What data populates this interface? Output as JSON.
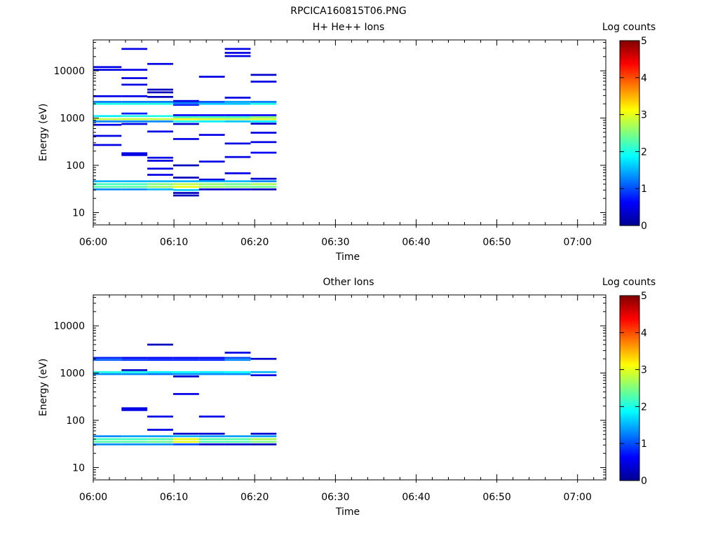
{
  "figure_title": "RPCICA160815T06.PNG",
  "chart_data": [
    {
      "type": "heatmap",
      "title": "H+ He++ Ions",
      "xlabel": "Time",
      "ylabel": "Energy (eV)",
      "x_ticks": [
        "06:00",
        "06:10",
        "06:20",
        "06:30",
        "06:40",
        "06:50",
        "07:00"
      ],
      "y_ticks": [
        "10",
        "100",
        "1000",
        "10000"
      ],
      "y_scale": "log",
      "ylim": [
        5.5,
        45000
      ],
      "xlim_minutes": [
        0,
        63.5
      ],
      "colorbar": {
        "label": "Log counts",
        "ticks": [
          "0",
          "1",
          "2",
          "3",
          "4",
          "5"
        ],
        "range": [
          0,
          5
        ]
      },
      "time_bins_minutes": [
        0,
        3.5,
        6.7,
        9.9,
        13.1,
        16.3,
        19.5,
        22.7
      ],
      "cells": [
        [
          0,
          12000,
          0.5
        ],
        [
          0,
          10500,
          0.5
        ],
        [
          0,
          2900,
          0.5
        ],
        [
          0,
          2200,
          1.2
        ],
        [
          0,
          2000,
          2.0
        ],
        [
          0,
          1100,
          1.8
        ],
        [
          0,
          950,
          2.8
        ],
        [
          0,
          850,
          1.3
        ],
        [
          0,
          720,
          0.5
        ],
        [
          0,
          420,
          0.5
        ],
        [
          0,
          270,
          0.5
        ],
        [
          0,
          46,
          1.5
        ],
        [
          0,
          40,
          2.2
        ],
        [
          0,
          35,
          2.3
        ],
        [
          0,
          31,
          1.3
        ],
        [
          1,
          29000,
          0.5
        ],
        [
          1,
          10500,
          0.5
        ],
        [
          1,
          7000,
          0.5
        ],
        [
          1,
          5100,
          0.5
        ],
        [
          1,
          2900,
          0.5
        ],
        [
          1,
          2200,
          1.2
        ],
        [
          1,
          2000,
          2.0
        ],
        [
          1,
          1250,
          0.8
        ],
        [
          1,
          1100,
          2.0
        ],
        [
          1,
          950,
          2.8
        ],
        [
          1,
          850,
          1.3
        ],
        [
          1,
          750,
          0.5
        ],
        [
          1,
          180,
          0.5
        ],
        [
          1,
          165,
          0.5
        ],
        [
          1,
          46,
          1.5
        ],
        [
          1,
          40,
          2.2
        ],
        [
          1,
          35,
          2.3
        ],
        [
          1,
          31,
          1.3
        ],
        [
          2,
          14000,
          0.5
        ],
        [
          2,
          4000,
          0.3
        ],
        [
          2,
          3500,
          0.3
        ],
        [
          2,
          2800,
          0.3
        ],
        [
          2,
          2200,
          1.2
        ],
        [
          2,
          2000,
          2.0
        ],
        [
          2,
          1100,
          2.0
        ],
        [
          2,
          950,
          2.8
        ],
        [
          2,
          850,
          1.3
        ],
        [
          2,
          520,
          0.5
        ],
        [
          2,
          145,
          0.5
        ],
        [
          2,
          125,
          0.5
        ],
        [
          2,
          85,
          0.5
        ],
        [
          2,
          63,
          0.5
        ],
        [
          2,
          46,
          1.5
        ],
        [
          2,
          40,
          2.5
        ],
        [
          2,
          35,
          2.6
        ],
        [
          2,
          31,
          1.5
        ],
        [
          3,
          2300,
          0.5
        ],
        [
          3,
          2100,
          1.2
        ],
        [
          3,
          1900,
          0.8
        ],
        [
          3,
          1150,
          0.6
        ],
        [
          3,
          1050,
          2.2
        ],
        [
          3,
          950,
          3.0
        ],
        [
          3,
          850,
          2.0
        ],
        [
          3,
          750,
          0.4
        ],
        [
          3,
          360,
          0.5
        ],
        [
          3,
          100,
          0.3
        ],
        [
          3,
          55,
          0.3
        ],
        [
          3,
          46,
          1.5
        ],
        [
          3,
          40,
          2.8
        ],
        [
          3,
          35,
          3.0
        ],
        [
          3,
          30,
          1.6
        ],
        [
          3,
          26,
          0.3
        ],
        [
          3,
          23,
          0.3
        ],
        [
          4,
          7500,
          0.5
        ],
        [
          4,
          2200,
          1.0
        ],
        [
          4,
          2000,
          1.6
        ],
        [
          4,
          1150,
          0.6
        ],
        [
          4,
          1050,
          2.2
        ],
        [
          4,
          950,
          2.9
        ],
        [
          4,
          850,
          1.8
        ],
        [
          4,
          440,
          0.5
        ],
        [
          4,
          120,
          0.5
        ],
        [
          4,
          50,
          0.5
        ],
        [
          4,
          46,
          1.5
        ],
        [
          4,
          40,
          2.6
        ],
        [
          4,
          35,
          2.6
        ],
        [
          4,
          31,
          0.4
        ],
        [
          5,
          29000,
          0.5
        ],
        [
          5,
          24000,
          0.5
        ],
        [
          5,
          20500,
          0.5
        ],
        [
          5,
          2700,
          0.5
        ],
        [
          5,
          2200,
          1.4
        ],
        [
          5,
          2000,
          1.6
        ],
        [
          5,
          1150,
          0.6
        ],
        [
          5,
          1050,
          2.2
        ],
        [
          5,
          950,
          2.8
        ],
        [
          5,
          850,
          1.6
        ],
        [
          5,
          290,
          0.5
        ],
        [
          5,
          150,
          0.5
        ],
        [
          5,
          68,
          0.5
        ],
        [
          5,
          46,
          1.5
        ],
        [
          5,
          40,
          2.4
        ],
        [
          5,
          35,
          2.5
        ],
        [
          5,
          31,
          0.4
        ],
        [
          6,
          8200,
          0.4
        ],
        [
          6,
          5900,
          0.5
        ],
        [
          6,
          2200,
          1.2
        ],
        [
          6,
          2000,
          2.0
        ],
        [
          6,
          1150,
          0.6
        ],
        [
          6,
          1050,
          2.5
        ],
        [
          6,
          950,
          2.9
        ],
        [
          6,
          850,
          1.8
        ],
        [
          6,
          760,
          0.4
        ],
        [
          6,
          490,
          0.5
        ],
        [
          6,
          310,
          0.5
        ],
        [
          6,
          185,
          0.6
        ],
        [
          6,
          52,
          0.4
        ],
        [
          6,
          46,
          1.3
        ],
        [
          6,
          40,
          2.7
        ],
        [
          6,
          35,
          2.4
        ],
        [
          6,
          31,
          0.3
        ]
      ]
    },
    {
      "type": "heatmap",
      "title": "Other Ions",
      "xlabel": "Time",
      "ylabel": "Energy (eV)",
      "x_ticks": [
        "06:00",
        "06:10",
        "06:20",
        "06:30",
        "06:40",
        "06:50",
        "07:00"
      ],
      "y_ticks": [
        "10",
        "100",
        "1000",
        "10000"
      ],
      "y_scale": "log",
      "ylim": [
        5.5,
        45000
      ],
      "xlim_minutes": [
        0,
        63.5
      ],
      "colorbar": {
        "label": "Log counts",
        "ticks": [
          "0",
          "1",
          "2",
          "3",
          "4",
          "5"
        ],
        "range": [
          0,
          5
        ]
      },
      "time_bins_minutes": [
        0,
        3.5,
        6.7,
        9.9,
        13.1,
        16.3,
        19.5,
        22.7
      ],
      "cells": [
        [
          0,
          2100,
          0.8
        ],
        [
          0,
          1900,
          1.1
        ],
        [
          0,
          1050,
          2.0
        ],
        [
          0,
          950,
          1.3
        ],
        [
          0,
          46,
          1.3
        ],
        [
          0,
          40,
          2.2
        ],
        [
          0,
          35,
          2.3
        ],
        [
          0,
          31,
          1.3
        ],
        [
          1,
          2100,
          0.6
        ],
        [
          1,
          1900,
          0.9
        ],
        [
          1,
          1150,
          0.4
        ],
        [
          1,
          1050,
          2.0
        ],
        [
          1,
          950,
          1.3
        ],
        [
          1,
          180,
          0.5
        ],
        [
          1,
          165,
          0.5
        ],
        [
          1,
          46,
          1.4
        ],
        [
          1,
          40,
          2.2
        ],
        [
          1,
          35,
          2.3
        ],
        [
          1,
          31,
          1.3
        ],
        [
          2,
          4000,
          0.3
        ],
        [
          2,
          2100,
          0.6
        ],
        [
          2,
          1900,
          0.8
        ],
        [
          2,
          1050,
          1.8
        ],
        [
          2,
          950,
          1.2
        ],
        [
          2,
          120,
          0.5
        ],
        [
          2,
          63,
          0.5
        ],
        [
          2,
          46,
          1.4
        ],
        [
          2,
          40,
          2.3
        ],
        [
          2,
          35,
          2.4
        ],
        [
          2,
          31,
          1.3
        ],
        [
          3,
          2100,
          0.6
        ],
        [
          3,
          1900,
          0.8
        ],
        [
          3,
          1050,
          1.9
        ],
        [
          3,
          950,
          1.3
        ],
        [
          3,
          850,
          0.4
        ],
        [
          3,
          360,
          0.5
        ],
        [
          3,
          52,
          0.4
        ],
        [
          3,
          46,
          1.5
        ],
        [
          3,
          40,
          3.0
        ],
        [
          3,
          35,
          3.0
        ],
        [
          3,
          31,
          1.0
        ],
        [
          4,
          2100,
          0.6
        ],
        [
          4,
          1900,
          0.8
        ],
        [
          4,
          1050,
          1.8
        ],
        [
          4,
          950,
          1.3
        ],
        [
          4,
          120,
          0.5
        ],
        [
          4,
          52,
          0.4
        ],
        [
          4,
          46,
          1.4
        ],
        [
          4,
          40,
          2.3
        ],
        [
          4,
          35,
          2.3
        ],
        [
          4,
          31,
          0.4
        ],
        [
          5,
          2700,
          0.5
        ],
        [
          5,
          2100,
          1.0
        ],
        [
          5,
          1900,
          1.3
        ],
        [
          5,
          1050,
          1.9
        ],
        [
          5,
          950,
          1.3
        ],
        [
          5,
          46,
          1.4
        ],
        [
          5,
          40,
          2.3
        ],
        [
          5,
          35,
          2.3
        ],
        [
          5,
          31,
          0.4
        ],
        [
          6,
          2000,
          0.4
        ],
        [
          6,
          1050,
          1.5
        ],
        [
          6,
          900,
          0.5
        ],
        [
          6,
          52,
          0.4
        ],
        [
          6,
          46,
          1.4
        ],
        [
          6,
          40,
          2.7
        ],
        [
          6,
          35,
          2.5
        ],
        [
          6,
          31,
          0.3
        ]
      ]
    }
  ]
}
